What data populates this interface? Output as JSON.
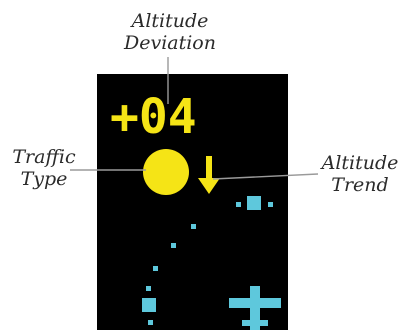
{
  "callouts": {
    "altitude_deviation": [
      "Altitude",
      "Deviation"
    ],
    "traffic_type": [
      "Traffic",
      "Type"
    ],
    "altitude_trend": [
      "Altitude",
      "Trend"
    ]
  },
  "display": {
    "altitude_deviation_value": "+04",
    "traffic_symbol": "traffic-advisory-circle",
    "trend_symbol": "down-arrow",
    "colors": {
      "background": "#000000",
      "traffic": "#f5e416",
      "cyan": "#5ec8dc",
      "leader_line": "#9a9a9a"
    }
  }
}
